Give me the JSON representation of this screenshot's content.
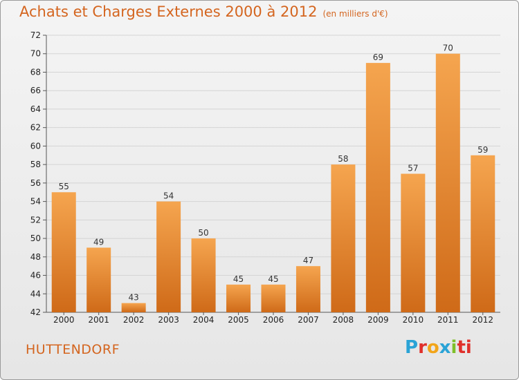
{
  "title": "Achats et Charges Externes 2000 à 2012",
  "subtitle": "(en milliers d'€)",
  "place": "HUTTENDORF",
  "logo_letters": [
    "P",
    "r",
    "o",
    "x",
    "i",
    "ti"
  ],
  "colors": {
    "bar_top": "#f5a54f",
    "bar_bottom": "#cf6a18",
    "title": "#d4651f"
  },
  "chart_data": {
    "type": "bar",
    "categories": [
      "2000",
      "2001",
      "2002",
      "2003",
      "2004",
      "2005",
      "2006",
      "2007",
      "2008",
      "2009",
      "2010",
      "2011",
      "2012"
    ],
    "values": [
      55,
      49,
      43,
      54,
      50,
      45,
      45,
      47,
      58,
      69,
      57,
      70,
      59
    ],
    "ylim": [
      42,
      72
    ],
    "yticks": [
      42,
      44,
      46,
      48,
      50,
      52,
      54,
      56,
      58,
      60,
      62,
      64,
      66,
      68,
      70,
      72
    ],
    "grid": true
  }
}
